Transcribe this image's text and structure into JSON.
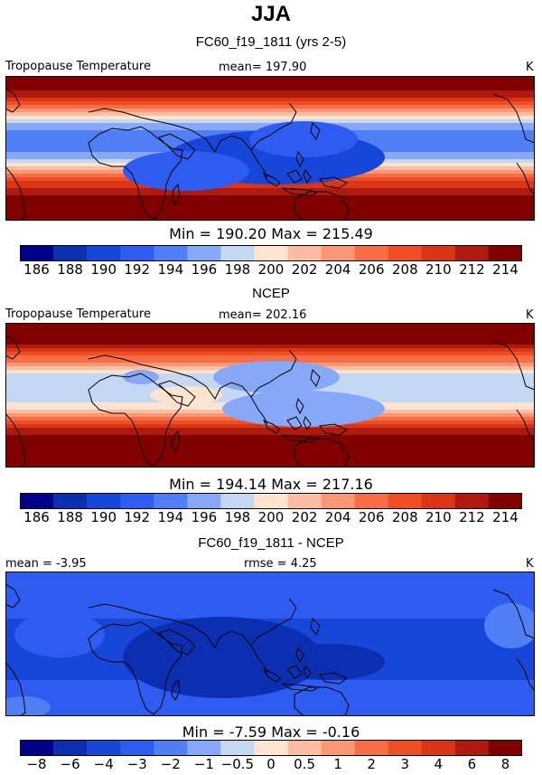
{
  "page": {
    "title": "JJA"
  },
  "colors": {
    "abs_palette": [
      "#00008b",
      "#0b2fb0",
      "#1747d8",
      "#2e5cf0",
      "#4f7ef5",
      "#86a8f6",
      "#c4d8f4",
      "#fde4d0",
      "#fcbda3",
      "#f99873",
      "#f76d45",
      "#ef4d22",
      "#d93516",
      "#ae1a0e",
      "#800000"
    ],
    "diff_palette": [
      "#00008b",
      "#0b2fb0",
      "#1747d8",
      "#2e5cf0",
      "#4f7ef5",
      "#86a8f6",
      "#c4d8f4",
      "#fde4d0",
      "#fcbda3",
      "#f99873",
      "#f76d45",
      "#ef4d22",
      "#d93516",
      "#ae1a0e",
      "#800000"
    ],
    "coastline": "#000000"
  },
  "chart_data": [
    {
      "type": "heatmap",
      "title": "FC60_f19_1811 (yrs 2-5)",
      "left_label": "Tropopause Temperature",
      "center_label": "mean=  197.90",
      "units": "K",
      "min_max_label": "Min  =  190.20  Max  =  215.49",
      "min": 190.2,
      "max": 215.49,
      "mean": 197.9,
      "colorbar_levels": [
        "186",
        "188",
        "190",
        "192",
        "194",
        "196",
        "198",
        "200",
        "202",
        "204",
        "206",
        "208",
        "210",
        "212",
        "214"
      ],
      "zonal_profile_lat": [
        -90,
        -75,
        -60,
        -45,
        -30,
        -15,
        0,
        15,
        30,
        45,
        60,
        75,
        90
      ],
      "zonal_profile_value": [
        214,
        213,
        212,
        209,
        203,
        196,
        193,
        192,
        196,
        202,
        209,
        213,
        214
      ]
    },
    {
      "type": "heatmap",
      "title": "NCEP",
      "left_label": "Tropopause Temperature",
      "center_label": "mean=  202.16",
      "units": "K",
      "min_max_label": "Min  =  194.14  Max  =  217.16",
      "min": 194.14,
      "max": 217.16,
      "mean": 202.16,
      "colorbar_levels": [
        "186",
        "188",
        "190",
        "192",
        "194",
        "196",
        "198",
        "200",
        "202",
        "204",
        "206",
        "208",
        "210",
        "212",
        "214"
      ],
      "zonal_profile_lat": [
        -90,
        -75,
        -60,
        -45,
        -30,
        -15,
        0,
        15,
        30,
        45,
        60,
        75,
        90
      ],
      "zonal_profile_value": [
        216,
        215,
        214,
        211,
        206,
        199,
        197,
        196,
        199,
        205,
        211,
        215,
        216
      ]
    },
    {
      "type": "heatmap",
      "title": "FC60_f19_1811 - NCEP",
      "left_label": "mean =  -3.95",
      "center_label": "rmse =    4.25",
      "units": "K",
      "min_max_label": "Min  =   -7.59  Max  =  -0.16",
      "min": -7.59,
      "max": -0.16,
      "mean": -3.95,
      "rmse": 4.25,
      "colorbar_levels": [
        "−8",
        "−6",
        "−4",
        "−3",
        "−2",
        "−1",
        "−0.5",
        "0",
        "0.5",
        "1",
        "2",
        "3",
        "4",
        "6",
        "8"
      ],
      "zonal_profile_lat": [
        -90,
        -75,
        -60,
        -45,
        -30,
        -15,
        0,
        15,
        30,
        45,
        60,
        75,
        90
      ],
      "zonal_profile_value": [
        -3.2,
        -3.4,
        -3.6,
        -4.0,
        -4.5,
        -5.0,
        -4.8,
        -4.3,
        -4.0,
        -3.8,
        -3.6,
        -3.3,
        -3.0
      ]
    }
  ]
}
